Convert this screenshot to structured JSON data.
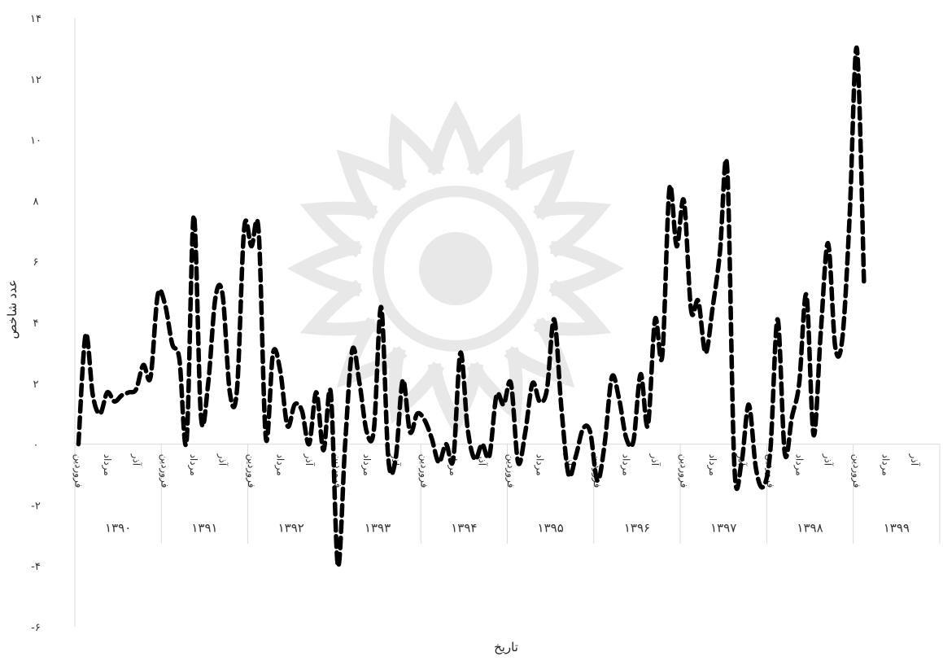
{
  "chart_data": {
    "type": "line",
    "title": "",
    "xlabel": "تاریخ",
    "ylabel": "عدد شاخص",
    "ylim": [
      -6,
      14
    ],
    "yticks": [
      -6,
      -4,
      -2,
      0,
      2,
      4,
      6,
      8,
      10,
      12,
      14
    ],
    "ytick_labels": [
      "-۶",
      "-۴",
      "-۲",
      "۰",
      "۲",
      "۴",
      "۶",
      "۸",
      "۱۰",
      "۱۲",
      "۱۴"
    ],
    "line_style": "dashed",
    "line_color": "#000000",
    "grid": false,
    "months_per_year": 12,
    "month_tick_labels": [
      "فروردین",
      "مرداد",
      "آذر"
    ],
    "month_tick_index": [
      0,
      4,
      8
    ],
    "years": [
      "۱۳۹۰",
      "۱۳۹۱",
      "۱۳۹۲",
      "۱۳۹۳",
      "۱۳۹۴",
      "۱۳۹۵",
      "۱۳۹۶",
      "۱۳۹۷",
      "۱۳۹۸",
      "۱۳۹۹"
    ],
    "series": [
      {
        "values": [
          0.0,
          3.6,
          1.6,
          1.0,
          1.7,
          1.4,
          1.6,
          1.7,
          1.8,
          2.6,
          2.2,
          4.9,
          4.6,
          3.3,
          2.8,
          0.1,
          7.5,
          0.9,
          2.0,
          4.8,
          4.9,
          1.7,
          1.8,
          7.1,
          6.5,
          7.0,
          0.2,
          3.0,
          2.4,
          0.6,
          1.3,
          1.1,
          0.0,
          1.7,
          -0.2,
          1.7,
          -4.0,
          0.0,
          3.1,
          2.0,
          0.4,
          0.5,
          4.5,
          -0.5,
          -0.5,
          2.1,
          0.4,
          1.0,
          0.8,
          0.2,
          -0.6,
          0.0,
          -0.5,
          3.0,
          0.5,
          -0.5,
          0.0,
          -0.4,
          1.6,
          1.3,
          2.0,
          -0.6,
          0.4,
          2.0,
          1.4,
          1.8,
          4.1,
          1.2,
          -1.0,
          -0.4,
          0.5,
          0.4,
          -1.2,
          0.0,
          2.2,
          1.5,
          0.2,
          0.1,
          2.3,
          0.6,
          4.1,
          2.9,
          8.4,
          6.5,
          8.0,
          4.4,
          4.7,
          3.0,
          4.5,
          6.3,
          9.1,
          -0.7,
          -0.6,
          1.3,
          -0.8,
          -1.4,
          -0.2,
          4.1,
          -0.3,
          0.9,
          2.0,
          4.9,
          0.3,
          3.7,
          6.6,
          3.2,
          3.5,
          7.5,
          13.0,
          5.2
        ]
      }
    ]
  }
}
